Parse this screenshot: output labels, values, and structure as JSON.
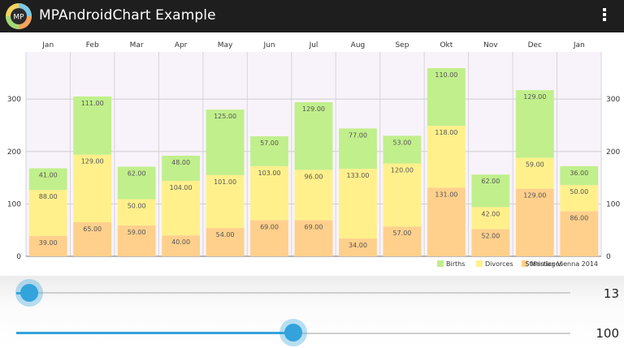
{
  "app": {
    "title": "MPAndroidChart Example",
    "logo_text": "MP"
  },
  "chart_data": {
    "type": "bar",
    "stacked": true,
    "categories": [
      "Jan",
      "Feb",
      "Mar",
      "Apr",
      "May",
      "Jun",
      "Jul",
      "Aug",
      "Sep",
      "Okt",
      "Nov",
      "Dec",
      "Jan"
    ],
    "series": [
      {
        "name": "Marriages",
        "color": "#ffd08c",
        "values": [
          39,
          65,
          59,
          40,
          54,
          69,
          69,
          34,
          57,
          131,
          52,
          129,
          86
        ]
      },
      {
        "name": "Divorces",
        "color": "#fff08c",
        "values": [
          88,
          129,
          50,
          104,
          101,
          103,
          96,
          133,
          120,
          118,
          42,
          59,
          50
        ]
      },
      {
        "name": "Births",
        "color": "#c1ef8c",
        "values": [
          41,
          111,
          62,
          48,
          125,
          57,
          129,
          77,
          53,
          110,
          62,
          129,
          36
        ]
      }
    ],
    "value_labels": {
      "Marriages": [
        "39.00",
        "65.00",
        "59.00",
        "40.00",
        "54.00",
        "69.00",
        "69.00",
        "34.00",
        "57.00",
        "131.00",
        "52.00",
        "129.00",
        "86.00"
      ],
      "Divorces": [
        "88.00",
        "129.00",
        "50.00",
        "104.00",
        "101.00",
        "103.00",
        "96.00",
        "133.00",
        "120.00",
        "118.00",
        "42.00",
        "59.00",
        "50.00"
      ],
      "Births": [
        "41.00",
        "111.00",
        "62.00",
        "48.00",
        "125.00",
        "57.00",
        "129.00",
        "77.00",
        "53.00",
        "110.00",
        "62.00",
        "129.00",
        "36.00"
      ]
    },
    "ylim": [
      0,
      390
    ],
    "yticks": [
      0,
      100,
      200,
      300
    ],
    "ytick_labels": [
      "0",
      "100",
      "200",
      "300"
    ],
    "legend": [
      "Births",
      "Divorces",
      "Marriages"
    ],
    "legend_placement": "bottom-right",
    "description": "Statistics Vienna 2014",
    "grid": true,
    "background": "#f8f3fa"
  },
  "sliders": [
    {
      "name": "x-count",
      "value": 13,
      "label": "13",
      "fraction": 0.02
    },
    {
      "name": "y-range",
      "value": 100,
      "label": "100",
      "fraction": 0.5
    }
  ]
}
